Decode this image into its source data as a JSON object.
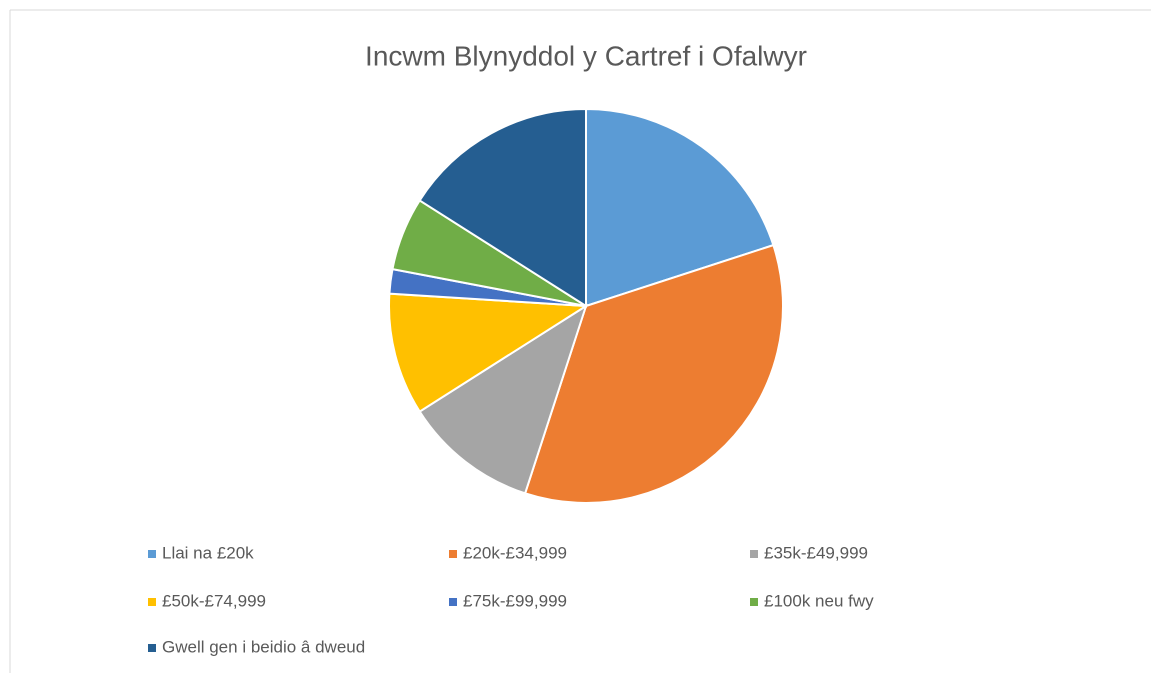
{
  "chart_data": {
    "type": "pie",
    "title": "Incwm Blynyddol y Cartref i Ofalwyr",
    "categories": [
      "Llai na £20k",
      "£20k-£34,999",
      "£35k-£49,999",
      "£50k-£74,999",
      "£75k-£99,999",
      "£100k neu fwy",
      "Gwell gen i beidio â dweud"
    ],
    "values": [
      20,
      35,
      11,
      10,
      2,
      6,
      16
    ],
    "colors": [
      "#5b9bd5",
      "#ed7d31",
      "#a5a5a5",
      "#ffc000",
      "#4472c4",
      "#70ad47",
      "#255e91"
    ],
    "legend": "bottom"
  }
}
